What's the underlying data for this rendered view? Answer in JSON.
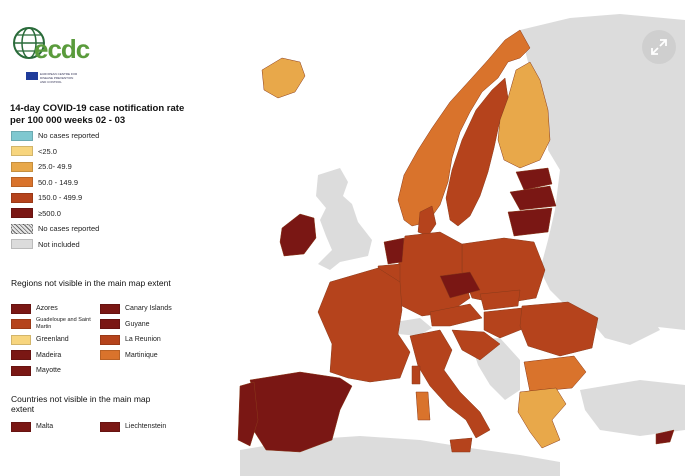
{
  "logo": {
    "text": "ecdc",
    "subtext": "EUROPEAN CENTRE FOR DISEASE PREVENTION AND CONTROL"
  },
  "legend": {
    "title": "14-day COVID-19 case notification rate per 100 000 weeks  02 - 03",
    "items": [
      {
        "label": "No cases reported",
        "color": "#7fc8d0"
      },
      {
        "label": "<25.0",
        "color": "#f7d57e"
      },
      {
        "label": "25.0- 49.9",
        "color": "#e8a84a"
      },
      {
        "label": "50.0 - 149.9",
        "color": "#d9732c"
      },
      {
        "label": "150.0 - 499.9",
        "color": "#b5431c"
      },
      {
        "label": "≥500.0",
        "color": "#7a1714"
      },
      {
        "label": "No cases reported",
        "color": "hatch"
      },
      {
        "label": "Not included",
        "color": "#dcdcdc"
      }
    ]
  },
  "regions_section": {
    "title": "Regions not visible in the main map extent",
    "items": [
      {
        "label": "Azores",
        "color": "#7a1714"
      },
      {
        "label": "Canary Islands",
        "color": "#7a1714"
      },
      {
        "label": "Guadeloupe and Saint Martin",
        "color": "#b5431c"
      },
      {
        "label": "Guyane",
        "color": "#7a1714"
      },
      {
        "label": "Greenland",
        "color": "#f7d57e"
      },
      {
        "label": "La Reunion",
        "color": "#b5431c"
      },
      {
        "label": "Madeira",
        "color": "#7a1714"
      },
      {
        "label": "Martinique",
        "color": "#d9732c"
      },
      {
        "label": "Mayotte",
        "color": "#7a1714"
      }
    ]
  },
  "countries_section": {
    "title": "Countries not visible in the main map extent",
    "items": [
      {
        "label": "Malta",
        "color": "#7a1714"
      },
      {
        "label": "Liechtenstein",
        "color": "#7a1714"
      }
    ]
  },
  "map": {
    "background_color": "#dcdcdc",
    "sea_color": "#ffffff"
  },
  "controls": {
    "expand_icon": "expand-arrows-icon"
  }
}
